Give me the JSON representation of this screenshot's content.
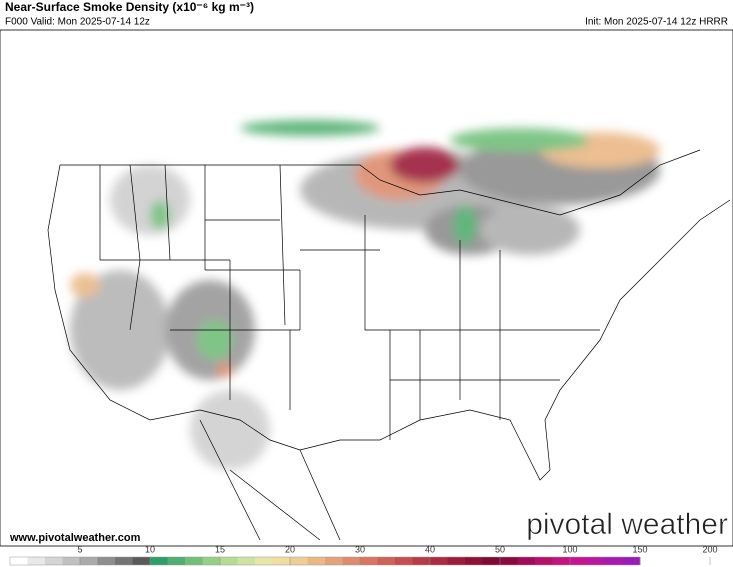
{
  "header": {
    "title": "Near-Surface Smoke Density (x10⁻⁶ kg m⁻³)",
    "valid": "F000 Valid: Mon 2025-07-14 12z",
    "init": "Init: Mon 2025-07-14 12z HRRR"
  },
  "footer": {
    "url": "www.pivotalweather.com",
    "logo": "pivotal weather"
  },
  "colorbar": {
    "ticks": [
      5,
      10,
      15,
      20,
      30,
      40,
      50,
      100,
      150,
      200
    ],
    "colors": [
      [
        "#ffffff",
        "#e8e8e8",
        "#d4d4d4",
        "#c0c0c0"
      ],
      [
        "#aaaaaa",
        "#8e8e8e",
        "#747474",
        "#5a5a5a"
      ],
      [
        "#2e9e6a",
        "#4fae70",
        "#72bf7a",
        "#96cf86"
      ],
      [
        "#b6dc92",
        "#cfe3a0",
        "#e6e6a8",
        "#f0dca0"
      ],
      [
        "#efcc94",
        "#eab886",
        "#e4a27a",
        "#de8c6e"
      ],
      [
        "#d87662",
        "#cf6258",
        "#c44e50",
        "#b83c48"
      ],
      [
        "#ab2c42",
        "#9c1e3c",
        "#8e1238",
        "#800a34"
      ],
      [
        "#8a0a40",
        "#a00c58",
        "#b4106c",
        "#c21480"
      ],
      [
        "#c41690",
        "#b818a0",
        "#a81aae",
        "#981cba"
      ]
    ]
  }
}
